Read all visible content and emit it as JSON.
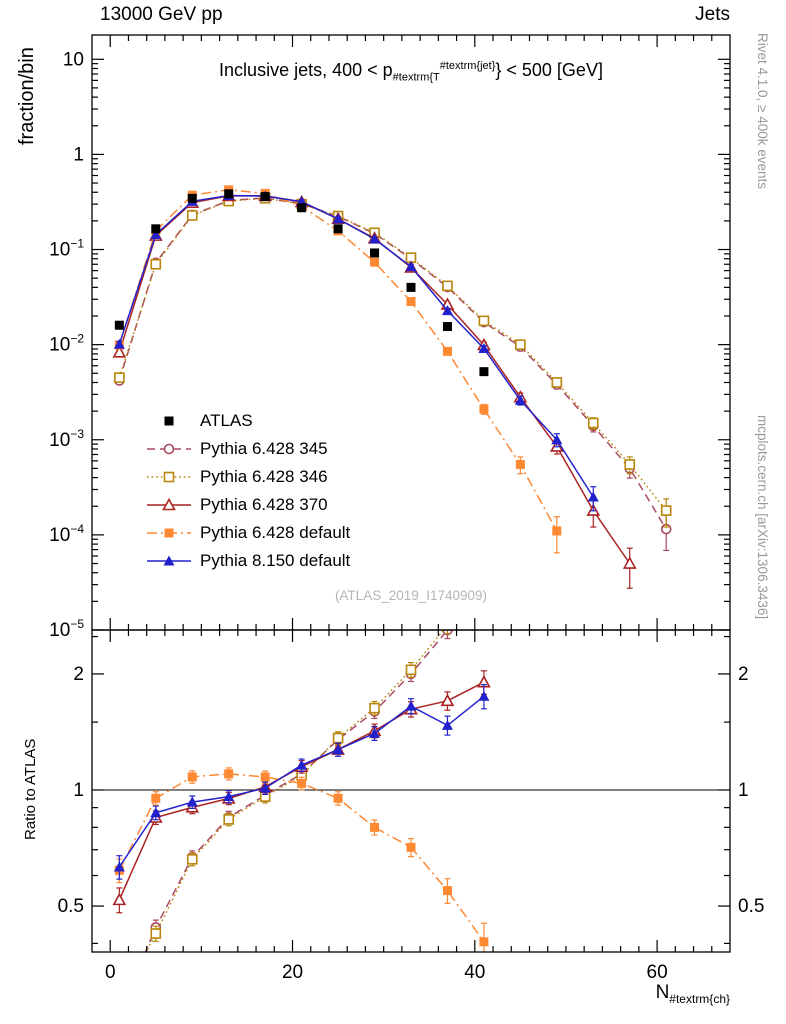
{
  "header": {
    "left": "13000 GeV pp",
    "right": "Jets"
  },
  "title": {
    "prefix": "Inclusive jets, 400 < p",
    "sub": "#textrm{T",
    "sup": "#textrm{jet}",
    "suffix": "} < 500 [GeV]"
  },
  "axis_labels": {
    "y_main": "fraction/bin",
    "y_ratio": "Ratio to ATLAS",
    "x_prefix": "N",
    "x_sub": "#textrm{ch}"
  },
  "side_notes": {
    "top": "Rivet 4.1.0, ≥ 400k events",
    "bottom": "mcplots.cern.ch [arXiv:1306.3436]"
  },
  "watermark": "(ATLAS_2019_I1740909)",
  "chart_data": {
    "type": "line",
    "yscale": "log",
    "title": "Inclusive jets, 400 < pT^jet < 500 [GeV]",
    "xlabel": "N_ch",
    "ylabel": "fraction/bin",
    "ratio_label": "Ratio to ATLAS",
    "xlim": [
      -2,
      68
    ],
    "ylim": [
      1e-05,
      18
    ],
    "ratio_ylim": [
      0.38,
      2.6
    ],
    "x_ticks": [
      0,
      20,
      40,
      60
    ],
    "x_minor_step": 2,
    "y_decades": [
      1,
      0,
      -1,
      -2,
      -3,
      -4,
      -5
    ],
    "ratio_ticks": [
      2,
      1,
      0.5
    ],
    "ratio_minor_ticks": [
      0.4,
      0.6,
      0.7,
      0.8,
      0.9,
      1.5,
      2.5
    ],
    "reference_line": 1,
    "legend_position": "center-left",
    "x": [
      1,
      5,
      9,
      13,
      17,
      21,
      25,
      29,
      33,
      37,
      41,
      45,
      49,
      53,
      57,
      61
    ],
    "series": [
      {
        "name": "ATLAS",
        "color": "#000000",
        "marker": "square-filled",
        "line": "none",
        "values": [
          0.016,
          0.165,
          0.345,
          0.385,
          0.36,
          0.275,
          0.165,
          0.092,
          0.04,
          0.0155,
          0.0052,
          null,
          null,
          null,
          null,
          null
        ]
      },
      {
        "name": "Pythia 6.428 345",
        "color": "#aa4a5f",
        "marker": "circle-open",
        "line": "dashed",
        "values": [
          0.0042,
          0.0726,
          0.231,
          0.327,
          0.349,
          0.303,
          0.223,
          0.147,
          0.08,
          0.0403,
          0.0172,
          0.0095,
          0.0038,
          0.0014,
          0.0005,
          0.000115
        ]
      },
      {
        "name": "Pythia 6.428 346",
        "color": "#b8860b",
        "marker": "square-open",
        "line": "dotted",
        "values": [
          0.0045,
          0.07,
          0.228,
          0.323,
          0.346,
          0.3,
          0.225,
          0.15,
          0.082,
          0.0415,
          0.0178,
          0.01,
          0.004,
          0.0015,
          0.00055,
          0.00018
        ]
      },
      {
        "name": "Pythia 6.428 370",
        "color": "#aa2222",
        "marker": "triangle-open",
        "line": "solid",
        "values": [
          0.0083,
          0.14,
          0.311,
          0.366,
          0.367,
          0.316,
          0.21,
          0.131,
          0.0648,
          0.0264,
          0.0099,
          0.0028,
          0.00085,
          0.00018,
          5e-05,
          null
        ]
      },
      {
        "name": "Pythia 6.428 default",
        "color": "#ff8833",
        "marker": "square-filled",
        "line": "dashdot",
        "values": [
          0.0099,
          0.157,
          0.373,
          0.424,
          0.389,
          0.286,
          0.157,
          0.0736,
          0.0284,
          0.0085,
          0.0021,
          0.00055,
          0.00011,
          null,
          null,
          null
        ]
      },
      {
        "name": "Pythia 8.150 default",
        "color": "#2222cc",
        "marker": "triangle-filled",
        "line": "solid",
        "values": [
          0.0101,
          0.144,
          0.321,
          0.37,
          0.364,
          0.319,
          0.21,
          0.129,
          0.066,
          0.0228,
          0.0091,
          0.0026,
          0.001,
          0.00025,
          null,
          null
        ]
      }
    ]
  }
}
